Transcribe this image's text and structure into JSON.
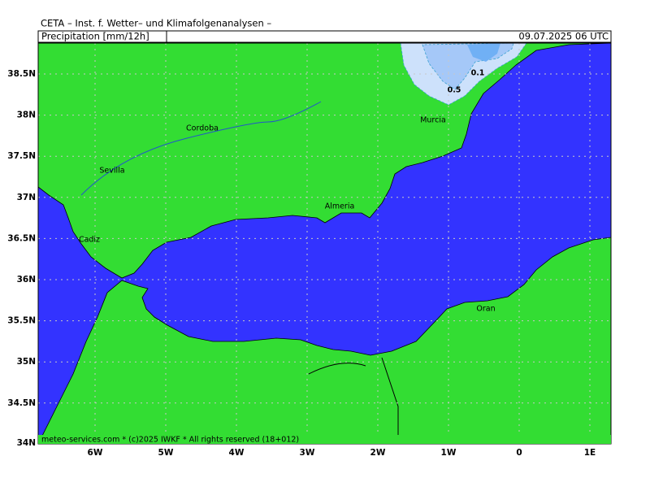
{
  "header": {
    "title": "CETA – Inst. f. Wetter– und Klimafolgenanalysen –",
    "product": "Precipitation [mm/12h]",
    "time": "09.07.2025 06 UTC"
  },
  "axes": {
    "lat_labels": [
      "38.5N",
      "38N",
      "37.5N",
      "37N",
      "36.5N",
      "36N",
      "35.5N",
      "35N",
      "34.5N",
      "34N"
    ],
    "lon_labels": [
      "6W",
      "5W",
      "4W",
      "3W",
      "2W",
      "1W",
      "0",
      "1E"
    ]
  },
  "cities": [
    "Cordoba",
    "Sevilla",
    "Murcia",
    "Almeria",
    "Cadiz",
    "Oran"
  ],
  "contour_labels": [
    "0.1",
    "0.5"
  ],
  "footer": "meteo-services.com * (c)2025 IWKF * All rights reserved (18+012)"
}
